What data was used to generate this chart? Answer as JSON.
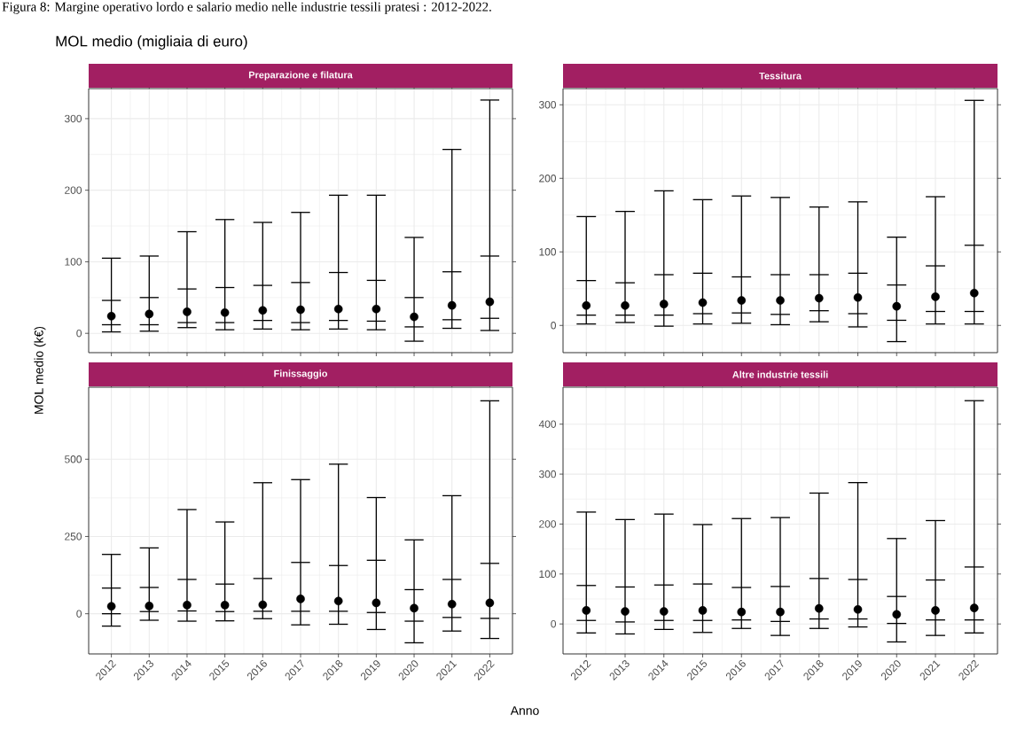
{
  "chart_data": [
    {
      "type": "box",
      "title": "Preparazione e filatura",
      "annotations": [
        "Figura 8: Margine operativo lordo e salario medio nelle industrie tessili pratesi : 2012-2022.",
        "MOL medio (migliaia di euro)"
      ],
      "ylabel": "MOL medio (k€)",
      "categories": [
        "2012",
        "2013",
        "2014",
        "2015",
        "2016",
        "2017",
        "2018",
        "2019",
        "2020",
        "2021",
        "2022"
      ],
      "color": "#000000",
      "ylim": [
        -27,
        342
      ],
      "yticks": [
        0,
        100,
        200,
        300
      ],
      "grid": true,
      "tick_labels": "y",
      "boxes": [
        {
          "low": 2,
          "q1": 12,
          "median": 24,
          "q3": 46,
          "high": 105
        },
        {
          "low": 3,
          "q1": 12,
          "median": 27,
          "q3": 50,
          "high": 108
        },
        {
          "low": 8,
          "q1": 15,
          "median": 30,
          "q3": 62,
          "high": 142
        },
        {
          "low": 5,
          "q1": 15,
          "median": 29,
          "q3": 64,
          "high": 159
        },
        {
          "low": 6,
          "q1": 18,
          "median": 32,
          "q3": 67,
          "high": 155
        },
        {
          "low": 5,
          "q1": 15,
          "median": 33,
          "q3": 71,
          "high": 169
        },
        {
          "low": 6,
          "q1": 18,
          "median": 34,
          "q3": 85,
          "high": 193
        },
        {
          "low": 5,
          "q1": 17,
          "median": 34,
          "q3": 74,
          "high": 193
        },
        {
          "low": -11,
          "q1": 9,
          "median": 23,
          "q3": 50,
          "high": 134
        },
        {
          "low": 7,
          "q1": 19,
          "median": 39,
          "q3": 86,
          "high": 257
        },
        {
          "low": 4,
          "q1": 21,
          "median": 44,
          "q3": 108,
          "high": 326
        }
      ]
    },
    {
      "type": "box",
      "title": "Tessitura",
      "categories": [
        "2012",
        "2013",
        "2014",
        "2015",
        "2016",
        "2017",
        "2018",
        "2019",
        "2020",
        "2021",
        "2022"
      ],
      "color": "#000000",
      "ylim": [
        -37,
        322
      ],
      "yticks": [
        0,
        100,
        200,
        300
      ],
      "grid": true,
      "tick_labels": "y",
      "boxes": [
        {
          "low": 2,
          "q1": 14,
          "median": 27,
          "q3": 61,
          "high": 148
        },
        {
          "low": 4,
          "q1": 14,
          "median": 27,
          "q3": 58,
          "high": 155
        },
        {
          "low": -1,
          "q1": 14,
          "median": 29,
          "q3": 69,
          "high": 183
        },
        {
          "low": 2,
          "q1": 16,
          "median": 31,
          "q3": 71,
          "high": 171
        },
        {
          "low": 3,
          "q1": 17,
          "median": 34,
          "q3": 66,
          "high": 176
        },
        {
          "low": 1,
          "q1": 15,
          "median": 34,
          "q3": 69,
          "high": 174
        },
        {
          "low": 5,
          "q1": 20,
          "median": 37,
          "q3": 69,
          "high": 161
        },
        {
          "low": -2,
          "q1": 16,
          "median": 38,
          "q3": 71,
          "high": 168
        },
        {
          "low": -22,
          "q1": 7,
          "median": 26,
          "q3": 55,
          "high": 120
        },
        {
          "low": 2,
          "q1": 19,
          "median": 39,
          "q3": 81,
          "high": 175
        },
        {
          "low": 2,
          "q1": 19,
          "median": 44,
          "q3": 109,
          "high": 306
        }
      ]
    },
    {
      "type": "box",
      "title": "Finissaggio",
      "xlabel": "Anno",
      "categories": [
        "2012",
        "2013",
        "2014",
        "2015",
        "2016",
        "2017",
        "2018",
        "2019",
        "2020",
        "2021",
        "2022"
      ],
      "color": "#000000",
      "ylim": [
        -130,
        733
      ],
      "yticks": [
        0,
        250,
        500
      ],
      "grid": true,
      "boxes": [
        {
          "low": -40,
          "q1": 0,
          "median": 24,
          "q3": 83,
          "high": 192
        },
        {
          "low": -21,
          "q1": 7,
          "median": 25,
          "q3": 85,
          "high": 213
        },
        {
          "low": -24,
          "q1": 9,
          "median": 28,
          "q3": 111,
          "high": 337
        },
        {
          "low": -23,
          "q1": 7,
          "median": 28,
          "q3": 96,
          "high": 297
        },
        {
          "low": -16,
          "q1": 8,
          "median": 29,
          "q3": 114,
          "high": 424
        },
        {
          "low": -36,
          "q1": 8,
          "median": 48,
          "q3": 166,
          "high": 434
        },
        {
          "low": -34,
          "q1": 8,
          "median": 41,
          "q3": 156,
          "high": 484
        },
        {
          "low": -51,
          "q1": 4,
          "median": 35,
          "q3": 173,
          "high": 376
        },
        {
          "low": -94,
          "q1": -24,
          "median": 18,
          "q3": 78,
          "high": 239
        },
        {
          "low": -56,
          "q1": -12,
          "median": 31,
          "q3": 111,
          "high": 382
        },
        {
          "low": -80,
          "q1": -15,
          "median": 35,
          "q3": 163,
          "high": 689
        }
      ]
    },
    {
      "type": "box",
      "title": "Altre industrie tessili",
      "categories": [
        "2012",
        "2013",
        "2014",
        "2015",
        "2016",
        "2017",
        "2018",
        "2019",
        "2020",
        "2021",
        "2022"
      ],
      "color": "#000000",
      "ylim": [
        -60,
        474
      ],
      "yticks": [
        0,
        100,
        200,
        300,
        400
      ],
      "grid": true,
      "boxes": [
        {
          "low": -18,
          "q1": 7,
          "median": 27,
          "q3": 77,
          "high": 224
        },
        {
          "low": -20,
          "q1": 4,
          "median": 25,
          "q3": 74,
          "high": 209
        },
        {
          "low": -11,
          "q1": 7,
          "median": 25,
          "q3": 78,
          "high": 220
        },
        {
          "low": -17,
          "q1": 7,
          "median": 27,
          "q3": 80,
          "high": 199
        },
        {
          "low": -9,
          "q1": 8,
          "median": 24,
          "q3": 73,
          "high": 211
        },
        {
          "low": -23,
          "q1": 5,
          "median": 24,
          "q3": 75,
          "high": 213
        },
        {
          "low": -9,
          "q1": 10,
          "median": 31,
          "q3": 91,
          "high": 262
        },
        {
          "low": -6,
          "q1": 10,
          "median": 29,
          "q3": 89,
          "high": 283
        },
        {
          "low": -36,
          "q1": 1,
          "median": 19,
          "q3": 55,
          "high": 171
        },
        {
          "low": -23,
          "q1": 8,
          "median": 27,
          "q3": 88,
          "high": 207
        },
        {
          "low": -18,
          "q1": 8,
          "median": 32,
          "q3": 114,
          "high": 447
        }
      ]
    }
  ]
}
